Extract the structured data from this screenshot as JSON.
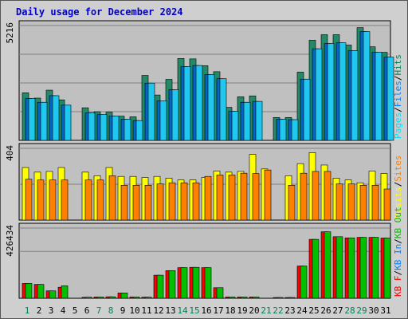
{
  "chart_data": {
    "type": "bar",
    "title": "Daily usage for December 2024",
    "categories": [
      "1",
      "2",
      "3",
      "4",
      "5",
      "6",
      "7",
      "8",
      "9",
      "10",
      "11",
      "12",
      "13",
      "14",
      "15",
      "16",
      "17",
      "18",
      "19",
      "20",
      "21",
      "22",
      "23",
      "24",
      "25",
      "26",
      "27",
      "28",
      "29",
      "30",
      "31"
    ],
    "weekend_days": [
      1,
      7,
      8,
      14,
      15,
      21,
      22,
      28,
      29
    ],
    "colors": {
      "weekday": "#008040",
      "weekend": "#00805c",
      "hits": "#00805c",
      "files": "#0080ff",
      "pages": "#00e0ff",
      "visits": "#ffff00",
      "sites": "#ff8000",
      "kb_in": "#0080ff",
      "kb_out": "#00c000",
      "kb_f": "#ff0000",
      "title": "#0000c8"
    },
    "panels": [
      {
        "max_label": "5216",
        "ymax": 5216,
        "legend": [
          {
            "text": "Pages",
            "color": "#00e0ff"
          },
          {
            "text": "Files",
            "color": "#0080ff"
          },
          {
            "text": "Hits",
            "color": "#00805c"
          }
        ],
        "separator_color": "#000000",
        "gridlines": [
          0.25,
          0.5,
          0.75,
          1
        ],
        "series": [
          {
            "name": "Hits",
            "color": "#228a68",
            "values": [
              2160,
              1920,
              2280,
              1840,
              0,
              1480,
              1300,
              1280,
              1100,
              1070,
              2950,
              2060,
              2770,
              3720,
              3700,
              3390,
              3120,
              1500,
              1980,
              2020,
              0,
              1040,
              1040,
              3100,
              4550,
              4800,
              4800,
              4330,
              5120,
              4250,
              4000
            ]
          },
          {
            "name": "Files",
            "color": "#0068c8",
            "values": [
              1900,
              1730,
              2030,
              1600,
              0,
              1250,
              1170,
              1100,
              960,
              900,
              2600,
              1800,
              2300,
              3350,
              3400,
              2990,
              2800,
              1320,
              1730,
              1770,
              0,
              960,
              940,
              2780,
              4160,
              4400,
              4430,
              4080,
              4940,
              4000,
              3780
            ]
          },
          {
            "name": "Pages",
            "color": "#20c8f0",
            "values": [
              1900,
              1730,
              2030,
              1600,
              0,
              1250,
              1170,
              1100,
              960,
              900,
              2600,
              1800,
              2300,
              3350,
              3400,
              2990,
              2800,
              1320,
              1730,
              1770,
              0,
              960,
              940,
              2780,
              4160,
              4400,
              4430,
              4080,
              4940,
              4000,
              3780
            ]
          }
        ]
      },
      {
        "max_label": "404",
        "ymax": 404,
        "legend": [
          {
            "text": "Visits",
            "color": "#ffff00"
          },
          {
            "text": "Sites",
            "color": "#ff8000"
          }
        ],
        "separator_color": "#000000",
        "gridlines": [
          0.5,
          1
        ],
        "series": [
          {
            "name": "Visits",
            "color": "#ffff00",
            "values": [
              296,
              270,
              274,
              296,
              0,
              270,
              250,
              296,
              246,
              246,
              240,
              246,
              236,
              226,
              226,
              240,
              276,
              270,
              274,
              370,
              288,
              0,
              250,
              318,
              380,
              310,
              236,
              226,
              210,
              276,
              262
            ]
          },
          {
            "name": "Sites",
            "color": "#ff8000",
            "values": [
              230,
              226,
              226,
              226,
              0,
              226,
              226,
              250,
              196,
              196,
              196,
              204,
              210,
              210,
              210,
              246,
              254,
              254,
              264,
              262,
              282,
              0,
              196,
              264,
              274,
              274,
              204,
              204,
              196,
              196,
              175
            ]
          }
        ]
      },
      {
        "max_label": "426434",
        "ymax": 426434,
        "legend": [
          {
            "text": "KB F",
            "color": "#ff0000"
          },
          {
            "text": "KB In",
            "color": "#0080ff"
          },
          {
            "text": "KB Out",
            "color": "#00c000"
          }
        ],
        "separator_color": "#000000",
        "gridlines": [
          0.667,
          1
        ],
        "series": [
          {
            "name": "KB F",
            "color": "#ff0000",
            "values": [
              90000,
              84000,
              45000,
              67000,
              0,
              6000,
              8000,
              9000,
              32000,
              8000,
              7000,
              140000,
              168000,
              186000,
              188000,
              186000,
              64000,
              8000,
              8000,
              8000,
              0,
              4000,
              4000,
              196000,
              358000,
              404000,
              374000,
              367000,
              370000,
              370000,
              366000
            ]
          },
          {
            "name": "KB Out",
            "color": "#00c000",
            "values": [
              90000,
              84000,
              45000,
              76000,
              0,
              7000,
              8000,
              9000,
              32000,
              8000,
              7000,
              140000,
              168000,
              186000,
              188000,
              186000,
              64000,
              8000,
              8000,
              8000,
              0,
              4000,
              4000,
              196000,
              358000,
              404000,
              374000,
              367000,
              370000,
              370000,
              366000
            ]
          }
        ]
      }
    ]
  }
}
